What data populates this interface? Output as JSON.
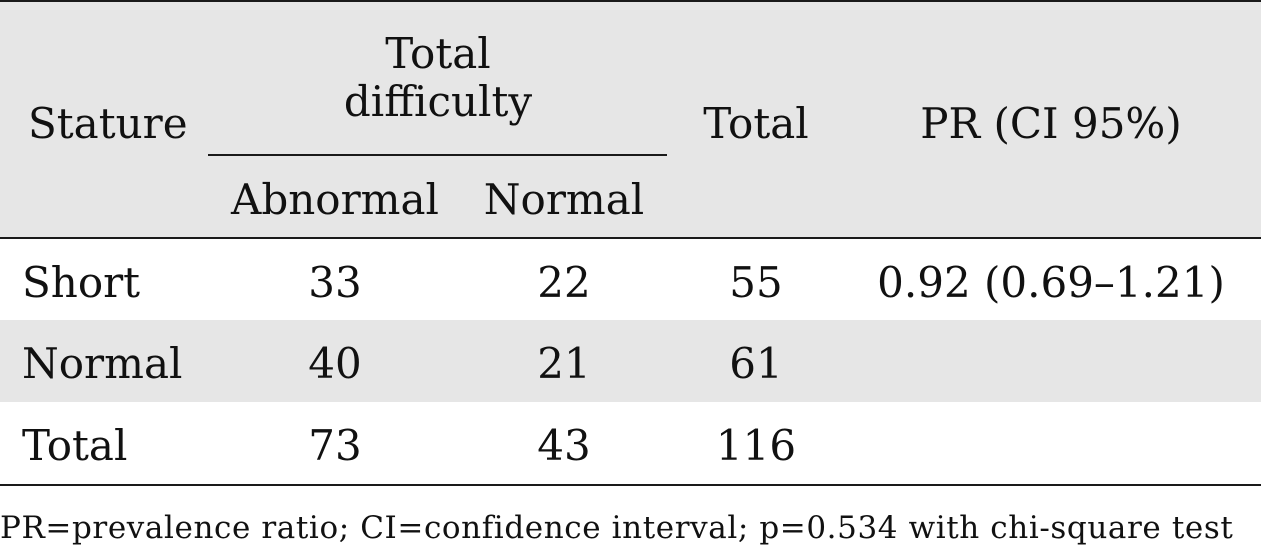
{
  "table": {
    "header": {
      "stature": "Stature",
      "group_line1": "Total",
      "group_line2": "difficulty",
      "total": "Total",
      "pr": "PR (CI 95%)",
      "sub_abnormal": "Abnormal",
      "sub_normal": "Normal"
    },
    "rows": [
      {
        "label": "Short",
        "abnormal": "33",
        "normal": "22",
        "total": "55",
        "pr": "0.92 (0.69–1.21)"
      },
      {
        "label": "Normal",
        "abnormal": "40",
        "normal": "21",
        "total": "61",
        "pr": ""
      },
      {
        "label": "Total",
        "abnormal": "73",
        "normal": "43",
        "total": "116",
        "pr": ""
      }
    ]
  },
  "footnote": "PR=prevalence ratio; CI=confidence interval;  p=0.534 with chi-square test",
  "colors": {
    "band": "#e6e6e6",
    "rule": "#1a1a1a",
    "text": "#111111"
  }
}
